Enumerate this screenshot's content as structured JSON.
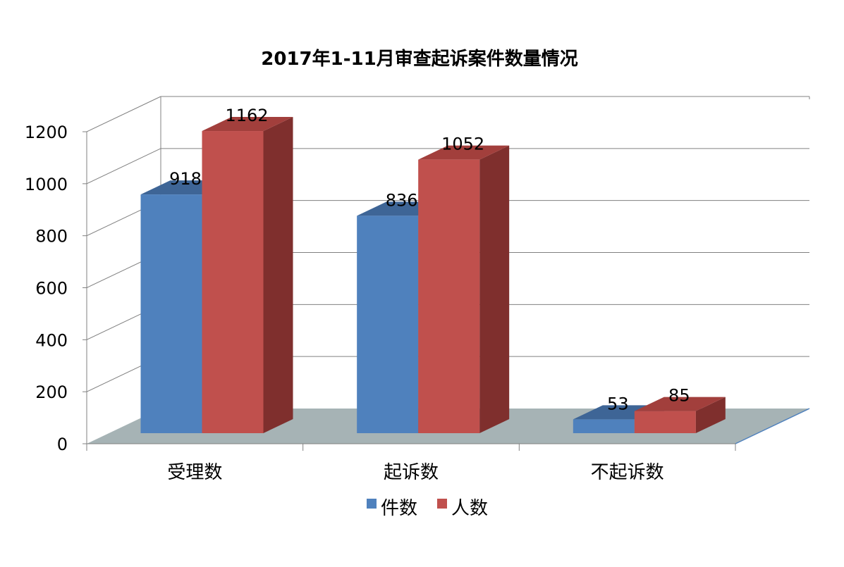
{
  "chart_data": {
    "type": "bar",
    "title": "2017年1-11月审查起诉案件数量情况",
    "categories": [
      "受理数",
      "起诉数",
      "不起诉数"
    ],
    "series": [
      {
        "name": "件数",
        "values": [
          918,
          836,
          53
        ]
      },
      {
        "name": "人数",
        "values": [
          1162,
          1052,
          85
        ]
      }
    ],
    "ylim": [
      0,
      1200
    ],
    "yticks": [
      0,
      200,
      400,
      600,
      800,
      1000,
      1200
    ],
    "xlabel": "",
    "ylabel": "",
    "grid": true,
    "legend_position": "bottom",
    "colors": {
      "series": [
        "#4F81BD",
        "#C0504D"
      ],
      "series_top": [
        "#3E6596",
        "#A23F3C"
      ],
      "series_side": [
        "#385D8A",
        "#7F2F2D"
      ],
      "floor": "#A6B3B5",
      "grid": "#808080"
    }
  }
}
